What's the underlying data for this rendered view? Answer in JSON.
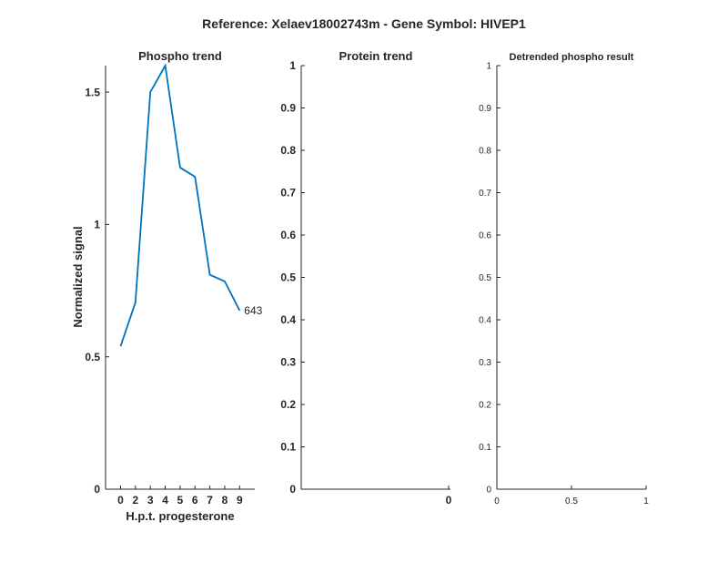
{
  "figure": {
    "title": "Reference:  Xelaev18002743m - Gene Symbol:  HIVEP1"
  },
  "chart_data": [
    {
      "type": "line",
      "title": "Phospho trend",
      "xlabel": "H.p.t. progesterone",
      "ylabel": "Normalized signal",
      "x": [
        0,
        2,
        3,
        4,
        5,
        6,
        7,
        8,
        9
      ],
      "x_tick_labels": [
        "0",
        "2",
        "3",
        "4",
        "5",
        "6",
        "7",
        "8",
        "9"
      ],
      "y_ticks": [
        "0",
        "0.5",
        "1",
        "1.5"
      ],
      "ylim": [
        0,
        1.6
      ],
      "series": [
        {
          "name": "643",
          "values": [
            0.54,
            0.705,
            1.5,
            1.6,
            1.215,
            1.18,
            0.81,
            0.785,
            0.675
          ],
          "color": "#0072BD"
        }
      ],
      "annotations": [
        "643"
      ],
      "grid": false,
      "x_is_categorical": true
    },
    {
      "type": "line",
      "title": "Protein trend",
      "xlabel": "",
      "ylabel": "",
      "x_tick_labels": [
        "0"
      ],
      "y_ticks": [
        "0",
        "0.1",
        "0.2",
        "0.3",
        "0.4",
        "0.5",
        "0.6",
        "0.7",
        "0.8",
        "0.9",
        "1"
      ],
      "ylim": [
        0,
        1
      ],
      "series": [],
      "grid": false
    },
    {
      "type": "line",
      "title": "Detrended phospho result",
      "xlabel": "",
      "ylabel": "",
      "xlim": [
        0,
        1
      ],
      "x_tick_labels": [
        "0",
        "0.5",
        "1"
      ],
      "y_ticks": [
        "0",
        "0.1",
        "0.2",
        "0.3",
        "0.4",
        "0.5",
        "0.6",
        "0.7",
        "0.8",
        "0.9",
        "1"
      ],
      "ylim": [
        0,
        1
      ],
      "series": [],
      "grid": false
    }
  ]
}
